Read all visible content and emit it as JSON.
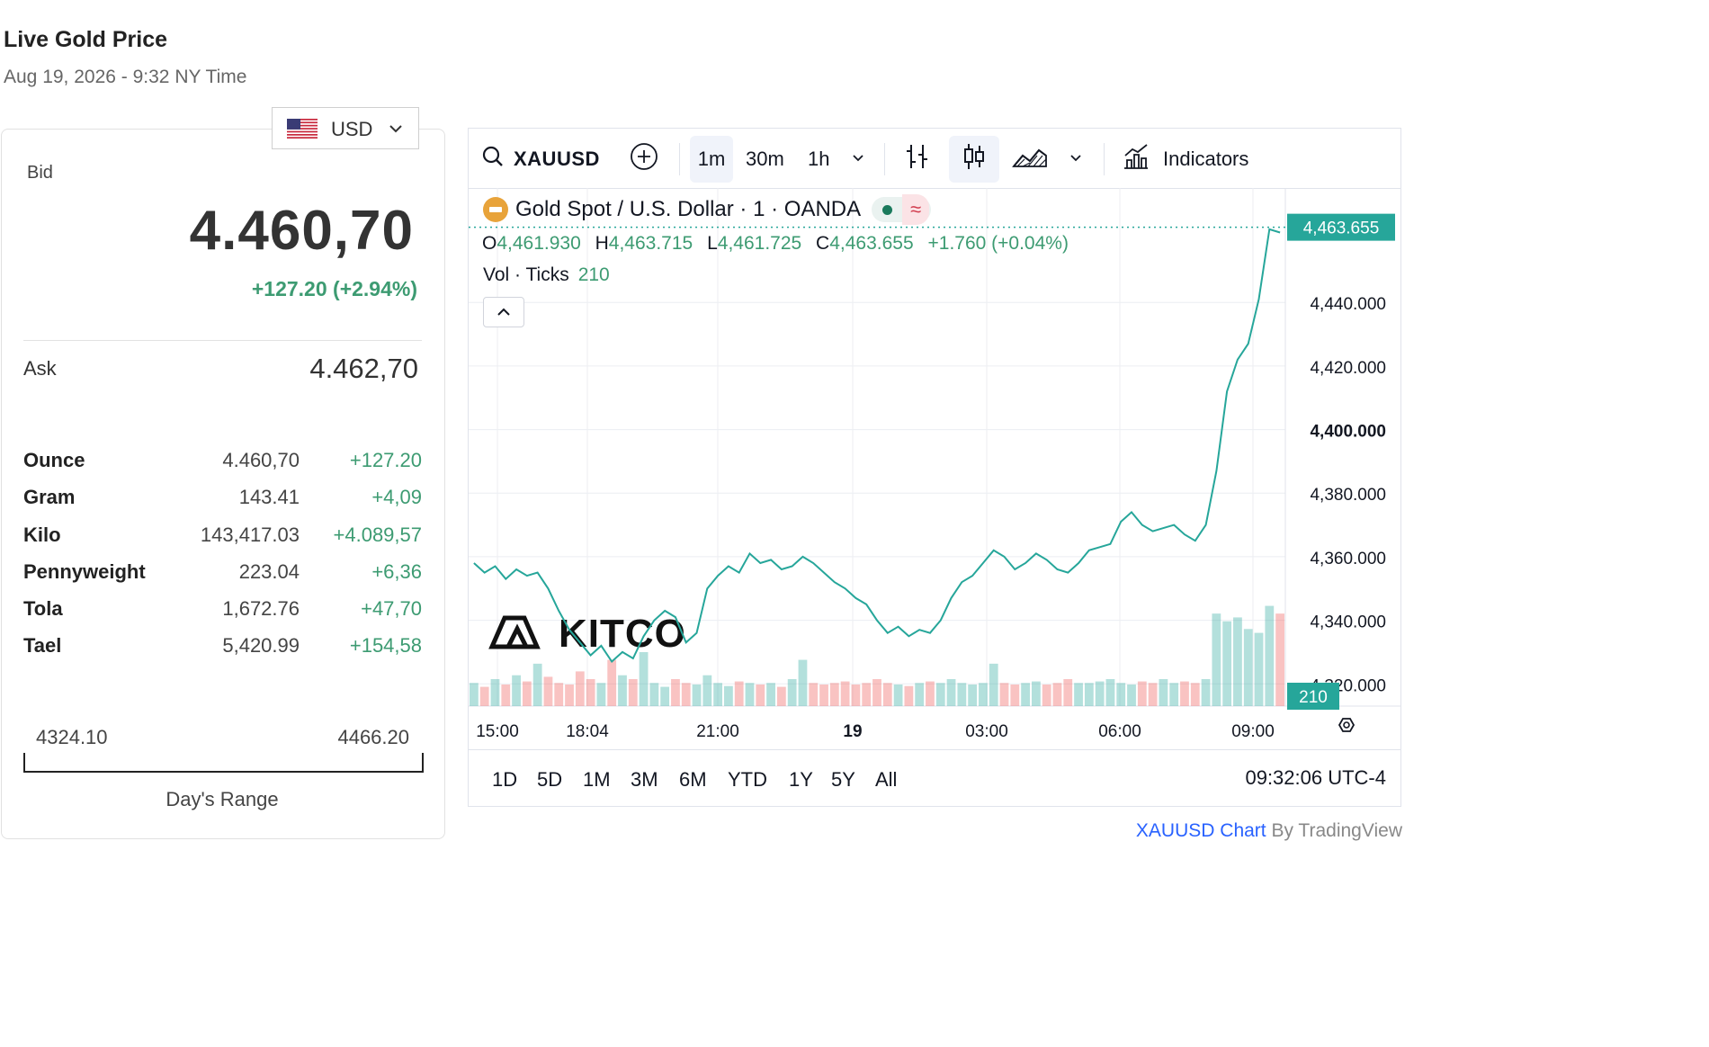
{
  "header": {
    "title": "Live Gold Price",
    "subtitle": "Aug 19, 2026 - 9:32 NY Time"
  },
  "currency_select": {
    "value": "USD",
    "flag_icon": "us-flag-icon"
  },
  "price_panel": {
    "bid_label": "Bid",
    "bid_value": "4.460,70",
    "bid_change": "+127.20 (+2.94%)",
    "ask_label": "Ask",
    "ask_value": "4.462,70",
    "up_color": "#3d9b72",
    "units": [
      {
        "name": "Ounce",
        "value": "4.460,70",
        "change": "+127.20"
      },
      {
        "name": "Gram",
        "value": "143.41",
        "change": "+4,09"
      },
      {
        "name": "Kilo",
        "value": "143,417.03",
        "change": "+4.089,57"
      },
      {
        "name": "Pennyweight",
        "value": "223.04",
        "change": "+6,36"
      },
      {
        "name": "Tola",
        "value": "1,672.76",
        "change": "+47,70"
      },
      {
        "name": "Tael",
        "value": "5,420.99",
        "change": "+154,58"
      }
    ],
    "range_low": "4324.10",
    "range_high": "4466.20",
    "range_label": "Day's Range"
  },
  "chart_widget": {
    "toolbar": {
      "symbol": "XAUUSD",
      "intervals": [
        "1m",
        "30m",
        "1h"
      ],
      "active_interval": "1m",
      "indicators_label": "Indicators"
    },
    "legend": {
      "instrument": "Gold Spot / U.S. Dollar · 1 · OANDA",
      "o_label": "O",
      "o_value": "4,461.930",
      "h_label": "H",
      "h_value": "4,463.715",
      "l_label": "L",
      "l_value": "4,461.725",
      "c_label": "C",
      "c_value": "4,463.655",
      "change": "+1.760 (+0.04%)",
      "vol_label": "Vol · Ticks",
      "vol_value": "210"
    },
    "watermark": "KITCO",
    "range_buttons": [
      "1D",
      "5D",
      "1M",
      "3M",
      "6M",
      "YTD",
      "1Y",
      "5Y",
      "All"
    ],
    "clock": "09:32:06 UTC-4"
  },
  "chart_data": {
    "type": "line",
    "x_tick_labels": [
      "15:00",
      "18:04",
      "21:00",
      "19",
      "03:00",
      "06:00",
      "09:00"
    ],
    "y_tick_labels": [
      "4,440.000",
      "4,420.000",
      "4,400.000",
      "4,380.000",
      "4,360.000",
      "4,340.000",
      "4,320.000"
    ],
    "ylim": [
      4313,
      4476
    ],
    "last_price_label": "4,463.655",
    "last_volume_label": "210",
    "up_color": "#26a69a",
    "down_color": "#ef5350",
    "series": [
      {
        "values": [
          4358,
          4355,
          4357,
          4353,
          4356,
          4354,
          4355,
          4350,
          4343,
          4337,
          4333,
          4329,
          4332,
          4327,
          4330,
          4328,
          4335,
          4340,
          4343,
          4341,
          4333,
          4336,
          4350,
          4354,
          4357,
          4355,
          4361,
          4358,
          4359,
          4356,
          4357,
          4360,
          4358,
          4355,
          4352,
          4350,
          4347,
          4345,
          4340,
          4336,
          4338,
          4335,
          4337,
          4336,
          4340,
          4347,
          4352,
          4354,
          4358,
          4362,
          4360,
          4356,
          4358,
          4361,
          4359,
          4356,
          4355,
          4358,
          4362,
          4363,
          4364,
          4371,
          4374,
          4370,
          4368,
          4369,
          4370,
          4367,
          4365,
          4370,
          4387,
          4412,
          4422,
          4427,
          4441,
          4463,
          4462
        ]
      }
    ],
    "volume": {
      "values": [
        30,
        25,
        35,
        28,
        40,
        32,
        55,
        38,
        30,
        28,
        45,
        35,
        30,
        60,
        40,
        35,
        70,
        30,
        25,
        35,
        30,
        28,
        40,
        30,
        26,
        32,
        30,
        28,
        30,
        25,
        35,
        60,
        30,
        28,
        30,
        32,
        28,
        30,
        35,
        30,
        28,
        26,
        30,
        32,
        30,
        35,
        30,
        28,
        30,
        55,
        30,
        28,
        30,
        32,
        28,
        30,
        35,
        30,
        30,
        32,
        35,
        30,
        28,
        32,
        30,
        35,
        30,
        32,
        30,
        35,
        120,
        110,
        115,
        100,
        95,
        130,
        120
      ]
    }
  }
}
